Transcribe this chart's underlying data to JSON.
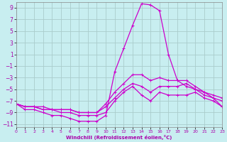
{
  "xlabel": "Windchill (Refroidissement éolien,°C)",
  "background_color": "#c8eef0",
  "grid_color": "#aacccc",
  "line_color": "#cc00cc",
  "xlim": [
    0,
    23
  ],
  "ylim": [
    -11.5,
    10
  ],
  "xticks": [
    0,
    1,
    2,
    3,
    4,
    5,
    6,
    7,
    8,
    9,
    10,
    11,
    12,
    13,
    14,
    15,
    16,
    17,
    18,
    19,
    20,
    21,
    22,
    23
  ],
  "yticks": [
    -11,
    -9,
    -7,
    -5,
    -3,
    -1,
    1,
    3,
    5,
    7,
    9
  ],
  "curves": [
    {
      "x": [
        0,
        1,
        2,
        3,
        4,
        5,
        6,
        7,
        8,
        9,
        10,
        11,
        12,
        13,
        14,
        15,
        16,
        17,
        18,
        19,
        20,
        21,
        22,
        23
      ],
      "y": [
        -7.5,
        -8.5,
        -8.5,
        -9.0,
        -9.5,
        -9.5,
        -10.0,
        -10.5,
        -10.5,
        -10.5,
        -9.5,
        -2.0,
        2.0,
        6.0,
        9.7,
        9.5,
        8.5,
        1.0,
        -3.5,
        -4.5,
        -5.0,
        -6.0,
        -6.5,
        -8.0
      ]
    },
    {
      "x": [
        0,
        1,
        2,
        3,
        4,
        5,
        6,
        7,
        8,
        9,
        10,
        11,
        12,
        13,
        14,
        15,
        16,
        17,
        18,
        19,
        20,
        21,
        22,
        23
      ],
      "y": [
        -7.5,
        -8.0,
        -8.0,
        -8.5,
        -8.5,
        -8.5,
        -8.5,
        -9.0,
        -9.0,
        -9.0,
        -7.5,
        -5.5,
        -4.0,
        -2.5,
        -2.5,
        -3.5,
        -3.0,
        -3.5,
        -3.5,
        -3.5,
        -4.5,
        -5.5,
        -6.0,
        -6.5
      ]
    },
    {
      "x": [
        0,
        1,
        2,
        3,
        4,
        5,
        6,
        7,
        8,
        9,
        10,
        11,
        12,
        13,
        14,
        15,
        16,
        17,
        18,
        19,
        20,
        21,
        22,
        23
      ],
      "y": [
        -7.5,
        -8.0,
        -8.0,
        -8.0,
        -8.5,
        -8.5,
        -8.5,
        -9.0,
        -9.0,
        -9.0,
        -8.0,
        -6.5,
        -5.0,
        -4.0,
        -4.5,
        -5.5,
        -4.5,
        -4.5,
        -4.5,
        -4.0,
        -5.0,
        -5.5,
        -6.5,
        -7.0
      ]
    },
    {
      "x": [
        0,
        1,
        2,
        3,
        4,
        5,
        6,
        7,
        8,
        9,
        10,
        11,
        12,
        13,
        14,
        15,
        16,
        17,
        18,
        19,
        20,
        21,
        22,
        23
      ],
      "y": [
        -7.5,
        -8.0,
        -8.0,
        -8.5,
        -8.5,
        -9.0,
        -9.0,
        -9.5,
        -9.5,
        -9.5,
        -9.0,
        -7.0,
        -5.5,
        -4.5,
        -6.0,
        -7.0,
        -5.5,
        -6.0,
        -6.0,
        -6.0,
        -5.5,
        -6.5,
        -7.0,
        -8.0
      ]
    }
  ]
}
